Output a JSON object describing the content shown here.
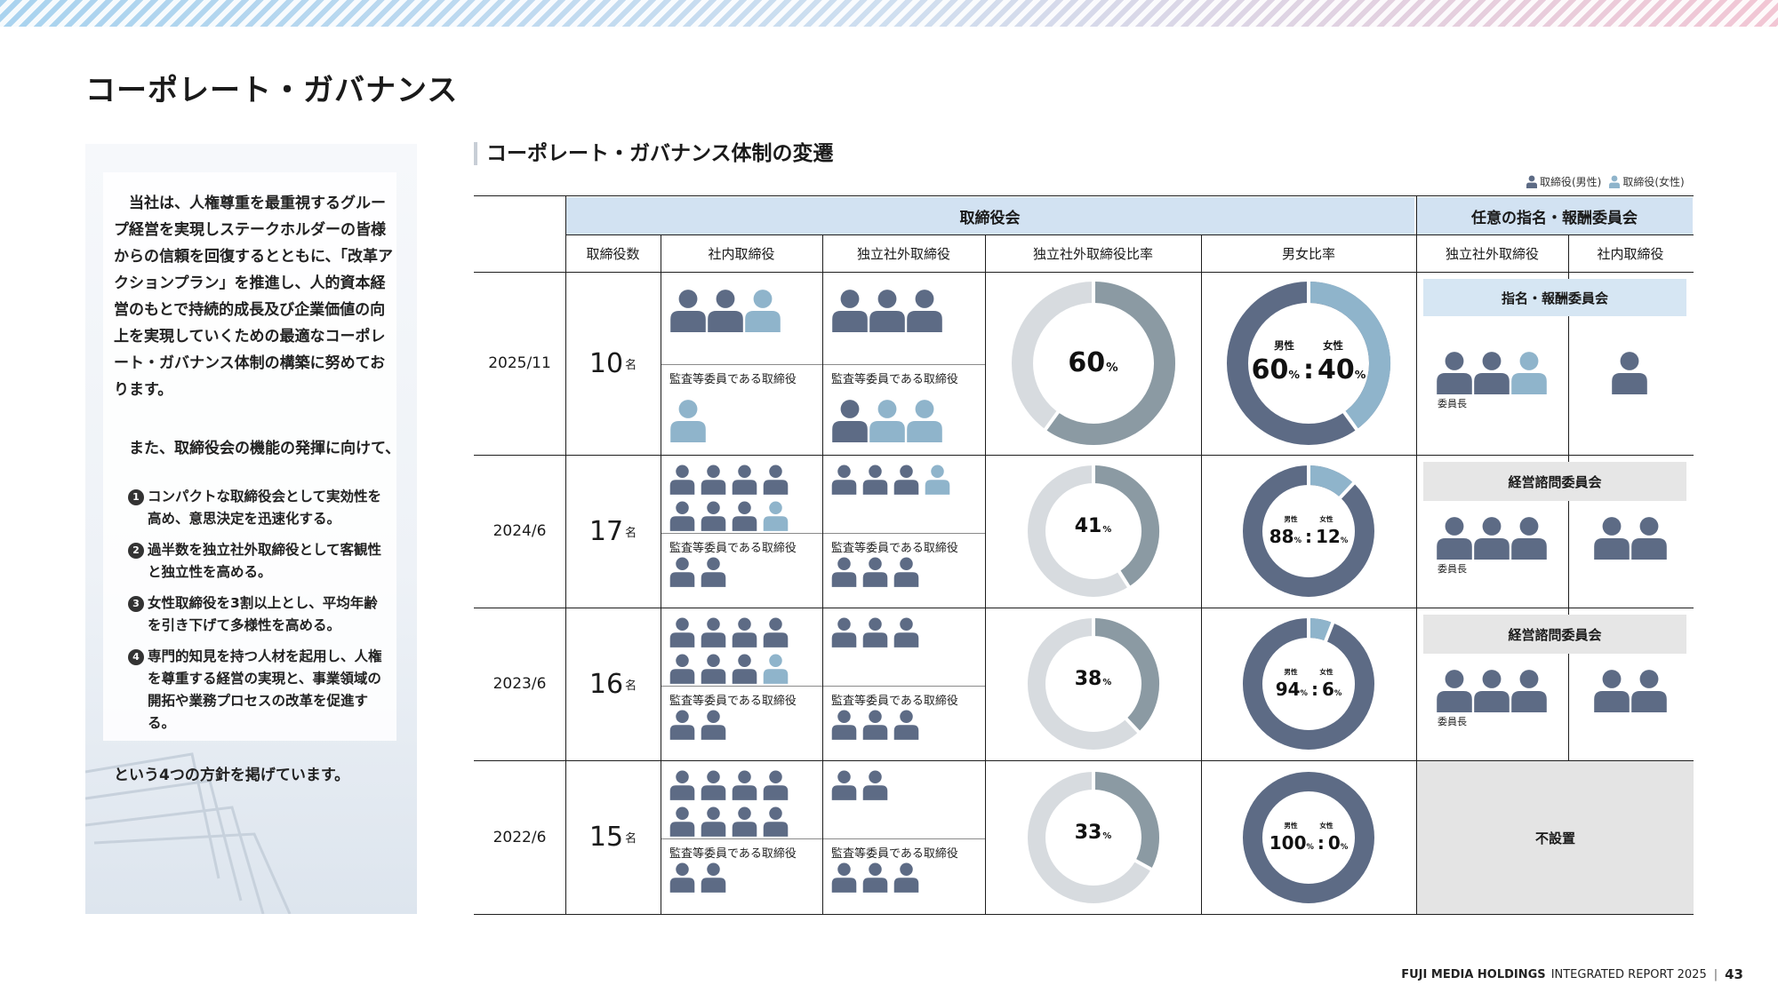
{
  "page_title": "コーポレート・ガバナンス",
  "side": {
    "intro": "当社は、人権尊重を最重視するグループ経営を実現しステークホルダーの皆様からの信頼を回復するとともに、「改革アクションプラン」を推進し、人的資本経営のもとで持続的成長及び企業価値の向上を実現していくための最適なコーポレート・ガバナンス体制の構築に努めております。",
    "sub": "また、取締役会の機能の発揮に向けて、",
    "policies": [
      {
        "num": "1",
        "text": "コンパクトな取締役会として実効性を高め、意思決定を迅速化する。"
      },
      {
        "num": "2",
        "text": "過半数を独立社外取締役として客観性と独立性を高める。"
      },
      {
        "num": "3",
        "text": "女性取締役を3割以上とし、平均年齢を引き下げて多様性を高める。"
      },
      {
        "num": "4",
        "text": "専門的知見を持つ人材を起用し、人権を尊重する経営の実現と、事業領域の開拓や業務プロセスの改革を促進する。"
      }
    ],
    "outro": "という4つの方針を掲げています。"
  },
  "section_title": "コーポレート・ガバナンス体制の変遷",
  "legend": {
    "male": "取締役(男性)",
    "female": "取締役(女性)"
  },
  "colors": {
    "male": "#5d6b85",
    "female": "#8fb4cb",
    "ratio_gray": "#8b9aa3",
    "ratio_track": "#d7dbdf",
    "header_blue": "#d2e2f2"
  },
  "headers": {
    "board": "取締役会",
    "committee": "任意の指名・報酬委員会",
    "count": "取締役数",
    "inside": "社内取締役",
    "outside": "独立社外取締役",
    "outside_ratio": "独立社外取締役比率",
    "gender_ratio": "男女比率",
    "comm_outside": "独立社外取締役",
    "comm_inside": "社内取締役"
  },
  "labels": {
    "audit_member": "監査等委員である取締役",
    "unit": "名",
    "pct": "%",
    "male": "男性",
    "female": "女性",
    "chair": "委員長",
    "colon": ":"
  },
  "rows": [
    {
      "date": "2025/11",
      "count": "10",
      "inside": {
        "male": 2,
        "female": 1
      },
      "inside_audit": {
        "male": 0,
        "female": 1
      },
      "outside": {
        "male": 3,
        "female": 0
      },
      "outside_audit": {
        "male": 1,
        "female": 2
      },
      "outside_ratio": 60,
      "male_pct": 60,
      "female_pct": 40,
      "committee": {
        "name": "指名・報酬委員会",
        "outside": {
          "male": 2,
          "female": 1
        },
        "inside": {
          "male": 1,
          "female": 0
        }
      }
    },
    {
      "date": "2024/6",
      "count": "17",
      "inside": {
        "male": 7,
        "female": 1
      },
      "inside_audit": {
        "male": 2,
        "female": 0
      },
      "outside": {
        "male": 3,
        "female": 1
      },
      "outside_audit": {
        "male": 3,
        "female": 0
      },
      "outside_ratio": 41,
      "male_pct": 88,
      "female_pct": 12,
      "committee": {
        "name": "経営諮問委員会",
        "outside": {
          "male": 3,
          "female": 0
        },
        "inside": {
          "male": 2,
          "female": 0
        }
      }
    },
    {
      "date": "2023/6",
      "count": "16",
      "inside": {
        "male": 7,
        "female": 1
      },
      "inside_audit": {
        "male": 2,
        "female": 0
      },
      "outside": {
        "male": 3,
        "female": 0
      },
      "outside_audit": {
        "male": 3,
        "female": 0
      },
      "outside_ratio": 38,
      "male_pct": 94,
      "female_pct": 6,
      "committee": {
        "name": "経営諮問委員会",
        "outside": {
          "male": 3,
          "female": 0
        },
        "inside": {
          "male": 2,
          "female": 0
        }
      }
    },
    {
      "date": "2022/6",
      "count": "15",
      "inside": {
        "male": 8,
        "female": 0
      },
      "inside_audit": {
        "male": 2,
        "female": 0
      },
      "outside": {
        "male": 2,
        "female": 0
      },
      "outside_audit": {
        "male": 3,
        "female": 0
      },
      "outside_ratio": 33,
      "male_pct": 100,
      "female_pct": 0,
      "committee": {
        "name": "不設置"
      }
    }
  ],
  "footer": {
    "brand": "FUJI MEDIA HOLDINGS",
    "report": "INTEGRATED REPORT 2025",
    "sep": "|",
    "page": "43"
  }
}
